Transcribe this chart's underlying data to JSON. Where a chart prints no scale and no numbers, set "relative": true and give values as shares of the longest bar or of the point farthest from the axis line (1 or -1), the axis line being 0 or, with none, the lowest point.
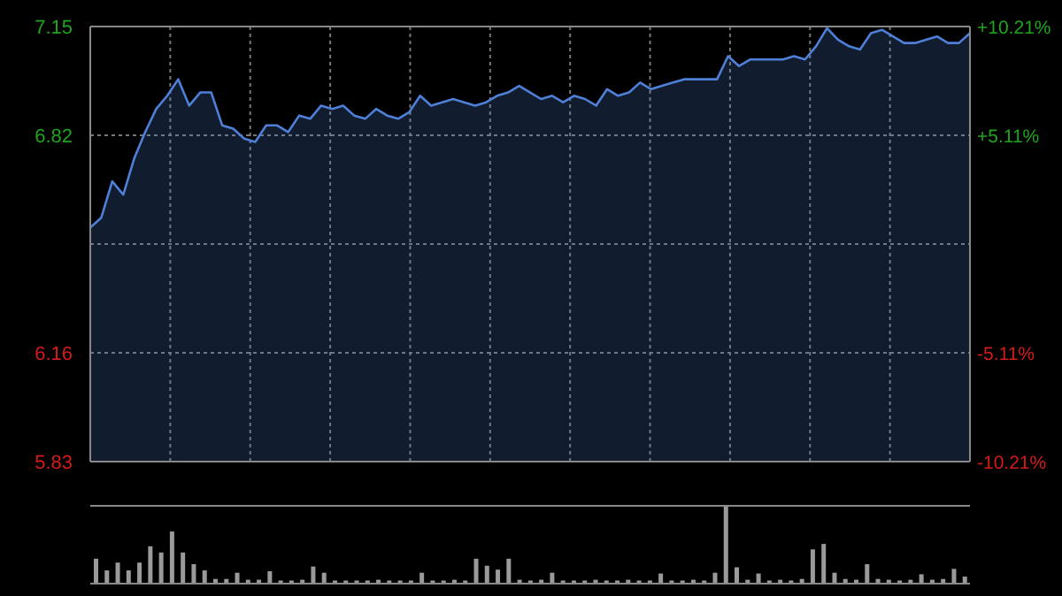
{
  "chart_data": [
    {
      "type": "area",
      "categories": [
        null,
        null,
        null,
        null,
        null,
        null,
        null,
        null,
        null,
        null,
        null,
        null,
        null,
        null,
        null,
        null,
        null,
        null,
        null,
        null,
        null,
        null,
        null,
        null,
        null,
        null,
        null,
        null,
        null,
        null,
        null,
        null,
        null,
        null,
        null,
        null,
        null,
        null,
        null,
        null,
        null,
        null,
        null,
        null,
        null,
        null,
        null,
        null,
        null,
        null,
        null,
        null,
        null,
        null,
        null,
        null,
        null,
        null,
        null,
        null,
        null,
        null,
        null,
        null,
        null,
        null,
        null,
        null,
        null,
        null,
        null,
        null,
        null,
        null,
        null,
        null,
        null,
        null,
        null,
        null,
        null
      ],
      "series": [
        {
          "color": "#4f80d8",
          "values": [
            6.54,
            6.57,
            6.68,
            6.64,
            6.75,
            6.83,
            6.9,
            6.94,
            6.99,
            6.91,
            6.95,
            6.95,
            6.85,
            6.84,
            6.81,
            6.8,
            6.85,
            6.85,
            6.83,
            6.88,
            6.87,
            6.91,
            6.9,
            6.91,
            6.88,
            6.87,
            6.9,
            6.88,
            6.87,
            6.89,
            6.94,
            6.91,
            6.92,
            6.93,
            6.92,
            6.91,
            6.92,
            6.94,
            6.95,
            6.97,
            6.95,
            6.93,
            6.94,
            6.92,
            6.94,
            6.93,
            6.91,
            6.96,
            6.94,
            6.95,
            6.98,
            6.96,
            6.97,
            6.98,
            6.99,
            6.99,
            6.99,
            6.99,
            7.06,
            7.03,
            7.05,
            7.05,
            7.05,
            7.05,
            7.06,
            7.05,
            7.09,
            7.145,
            7.11,
            7.09,
            7.08,
            7.13,
            7.14,
            7.12,
            7.1,
            7.1,
            7.11,
            7.12,
            7.1,
            7.1,
            7.13
          ]
        }
      ],
      "ylim": [
        5.83,
        7.15
      ],
      "yticks": [
        7.15,
        6.82,
        {
          "value": 6.49,
          "label": null
        },
        6.16,
        5.83
      ],
      "y2lim": [
        -10.21,
        10.21
      ],
      "y2ticks": [
        {
          "value": 10.21,
          "label": "+10.21%"
        },
        {
          "value": 5.11,
          "label": "+5.11%"
        },
        {
          "value": 0,
          "label": null
        },
        {
          "value": -5.11,
          "label": "-5.11%"
        },
        {
          "value": -10.21,
          "label": "-10.21%"
        }
      ],
      "grid": true,
      "tick_labels": "y"
    },
    {
      "type": "bar",
      "relative": true,
      "categories": [
        null,
        null,
        null,
        null,
        null,
        null,
        null,
        null,
        null,
        null,
        null,
        null,
        null,
        null,
        null,
        null,
        null,
        null,
        null,
        null,
        null,
        null,
        null,
        null,
        null,
        null,
        null,
        null,
        null,
        null,
        null,
        null,
        null,
        null,
        null,
        null,
        null,
        null,
        null,
        null,
        null,
        null,
        null,
        null,
        null,
        null,
        null,
        null,
        null,
        null,
        null,
        null,
        null,
        null,
        null,
        null,
        null,
        null,
        null,
        null,
        null,
        null,
        null,
        null,
        null,
        null,
        null,
        null,
        null,
        null,
        null,
        null,
        null,
        null,
        null,
        null,
        null,
        null,
        null,
        null,
        null
      ],
      "series": [
        {
          "color": "#9a9a9a",
          "values": [
            0.32,
            0.17,
            0.27,
            0.17,
            0.27,
            0.48,
            0.4,
            0.67,
            0.4,
            0.25,
            0.17,
            0.06,
            0.06,
            0.14,
            0.05,
            0.05,
            0.16,
            0.04,
            0.04,
            0.05,
            0.22,
            0.14,
            0.04,
            0.04,
            0.04,
            0.04,
            0.05,
            0.04,
            0.04,
            0.04,
            0.14,
            0.04,
            0.04,
            0.05,
            0.04,
            0.32,
            0.23,
            0.18,
            0.32,
            0.05,
            0.04,
            0.05,
            0.14,
            0.04,
            0.04,
            0.04,
            0.05,
            0.04,
            0.04,
            0.05,
            0.04,
            0.04,
            0.13,
            0.04,
            0.04,
            0.05,
            0.04,
            0.14,
            1,
            0.21,
            0.05,
            0.13,
            0.04,
            0.05,
            0.04,
            0.06,
            0.44,
            0.51,
            0.14,
            0.06,
            0.05,
            0.25,
            0.06,
            0.05,
            0.04,
            0.05,
            0.12,
            0.05,
            0.06,
            0.19,
            0.09
          ]
        }
      ],
      "tick_labels": false
    }
  ]
}
